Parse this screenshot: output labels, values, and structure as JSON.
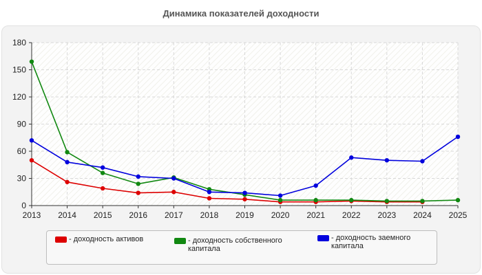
{
  "chart_data": {
    "type": "line",
    "title": "Динамика показателей доходности",
    "xlabel": "",
    "ylabel": "",
    "x": [
      "2013",
      "2014",
      "2015",
      "2016",
      "2017",
      "2018",
      "2019",
      "2020",
      "2021",
      "2022",
      "2023",
      "2024",
      "2025"
    ],
    "ylim": [
      0,
      180
    ],
    "yticks": [
      0,
      30,
      60,
      90,
      120,
      150,
      180
    ],
    "grid": true,
    "legend_position": "bottom",
    "series": [
      {
        "name": "- доходность активов",
        "color": "#dd0000",
        "values": [
          50,
          26,
          19,
          14,
          15,
          8,
          7,
          4,
          4,
          5,
          4,
          4,
          null
        ]
      },
      {
        "name": "- доходность собственного капитала",
        "color": "#118811",
        "values": [
          159,
          59,
          36,
          24,
          31,
          18,
          12,
          6,
          6,
          6,
          5,
          5,
          6
        ]
      },
      {
        "name": "- доходность заемного капитала",
        "color": "#0000dd",
        "values": [
          72,
          48,
          42,
          32,
          30,
          15,
          14,
          11,
          22,
          53,
          50,
          49,
          76
        ]
      }
    ]
  }
}
